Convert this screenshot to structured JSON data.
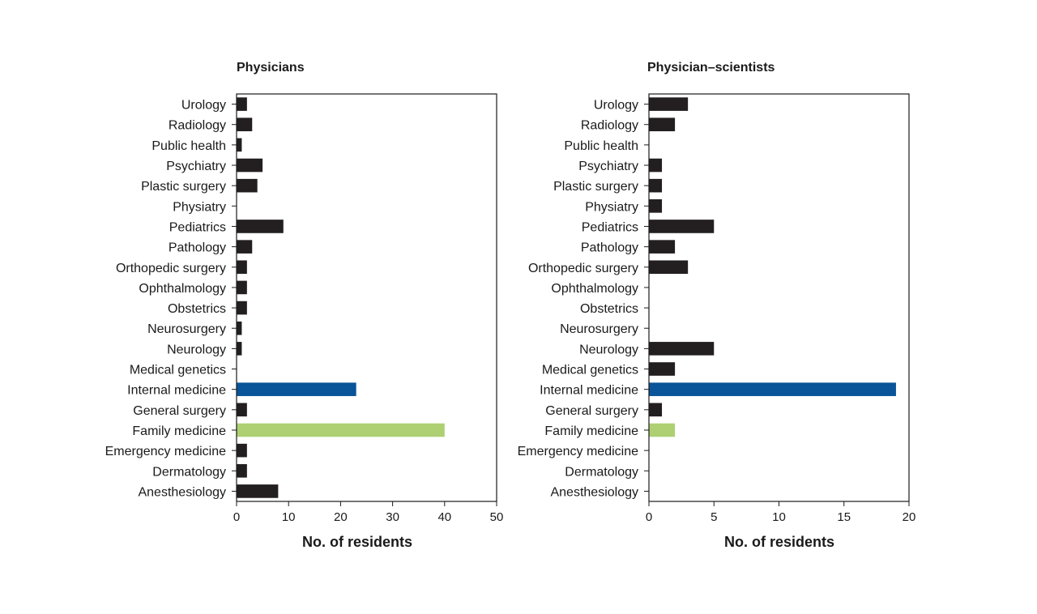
{
  "chart_data": [
    {
      "type": "bar",
      "orientation": "horizontal",
      "title": "Physicians",
      "xlabel": "No. of residents",
      "ylabel": "",
      "xlim": [
        0,
        50
      ],
      "xticks": [
        0,
        10,
        20,
        30,
        40,
        50
      ],
      "grid": false,
      "categories": [
        "Urology",
        "Radiology",
        "Public health",
        "Psychiatry",
        "Plastic surgery",
        "Physiatry",
        "Pediatrics",
        "Pathology",
        "Orthopedic surgery",
        "Ophthalmology",
        "Obstetrics",
        "Neurosurgery",
        "Neurology",
        "Medical genetics",
        "Internal medicine",
        "General surgery",
        "Family medicine",
        "Emergency medicine",
        "Dermatology",
        "Anesthesiology"
      ],
      "values": [
        2,
        3,
        1,
        5,
        4,
        0,
        9,
        3,
        2,
        2,
        2,
        1,
        1,
        0,
        23,
        2,
        40,
        2,
        2,
        8
      ],
      "highlight_colors": {
        "Internal medicine": "#0a5499",
        "Family medicine": "#aed072"
      },
      "default_color": "#231f20"
    },
    {
      "type": "bar",
      "orientation": "horizontal",
      "title": "Physician–scientists",
      "xlabel": "No. of residents",
      "ylabel": "",
      "xlim": [
        0,
        20
      ],
      "xticks": [
        0,
        5,
        10,
        15,
        20
      ],
      "grid": false,
      "categories": [
        "Urology",
        "Radiology",
        "Public health",
        "Psychiatry",
        "Plastic surgery",
        "Physiatry",
        "Pediatrics",
        "Pathology",
        "Orthopedic surgery",
        "Ophthalmology",
        "Obstetrics",
        "Neurosurgery",
        "Neurology",
        "Medical genetics",
        "Internal medicine",
        "General surgery",
        "Family medicine",
        "Emergency medicine",
        "Dermatology",
        "Anesthesiology"
      ],
      "values": [
        3,
        2,
        0,
        1,
        1,
        1,
        5,
        2,
        3,
        0,
        0,
        0,
        5,
        2,
        19,
        1,
        2,
        0,
        0,
        0
      ],
      "highlight_colors": {
        "Internal medicine": "#0a5499",
        "Family medicine": "#aed072"
      },
      "default_color": "#231f20"
    }
  ]
}
